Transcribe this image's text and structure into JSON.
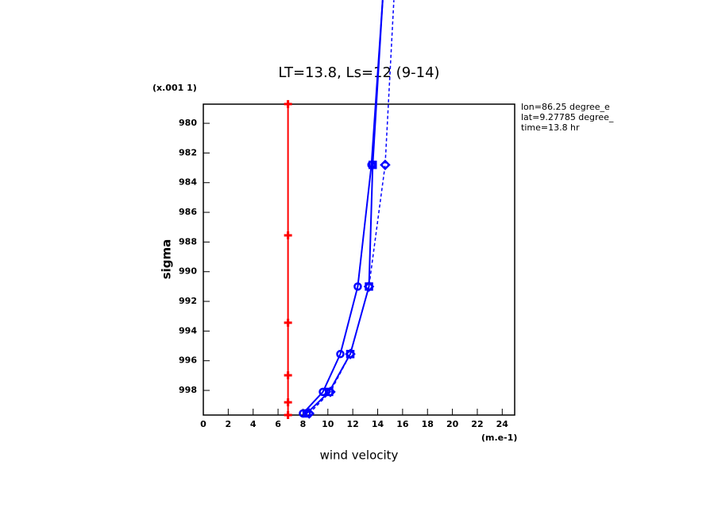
{
  "chart_data": {
    "type": "line",
    "title": "LT=13.8, Ls=12 (9-14)",
    "x_label": "wind velocity",
    "y_label": "sigma",
    "x_units": "(m.e-1)",
    "y_units": "(x.001 1)",
    "annotations": [
      "lon=86.25 degree_e",
      "lat=9.27785 degree_",
      "time=13.8 hr"
    ],
    "xlim": [
      0,
      25
    ],
    "xticks": [
      0,
      2,
      4,
      6,
      8,
      10,
      12,
      14,
      16,
      18,
      20,
      22,
      24
    ],
    "ylim": [
      999.66,
      978.71
    ],
    "yticks": [
      980,
      982,
      984,
      986,
      988,
      990,
      992,
      994,
      996,
      998
    ],
    "series": [
      {
        "color": "#ff0000",
        "marker": "plus",
        "dashed": false,
        "values": [
          6.8,
          6.8,
          6.8,
          6.8,
          6.8,
          6.8
        ],
        "sigma": [
          978.7,
          987.55,
          993.44,
          996.98,
          998.8,
          999.66
        ]
      },
      {
        "color": "#0000ff",
        "marker": "circle",
        "dashed": false,
        "values": [
          8.0,
          9.6,
          11.0,
          12.4,
          13.5,
          14.4
        ],
        "sigma": [
          999.55,
          998.1,
          995.55,
          991.0,
          982.8,
          971.7
        ]
      },
      {
        "color": "#0000ff",
        "marker": "square",
        "dashed": false,
        "values": [
          8.3,
          10.1,
          11.8,
          13.3,
          13.6,
          14.4
        ],
        "sigma": [
          999.55,
          998.1,
          995.55,
          991.0,
          982.8,
          971.7
        ]
      },
      {
        "color": "#0000ff",
        "marker": "diamond",
        "dashed": true,
        "values": [
          8.5,
          10.2,
          11.8,
          13.3,
          14.6,
          15.3
        ],
        "sigma": [
          999.55,
          998.1,
          995.55,
          991.0,
          982.8,
          971.7
        ]
      }
    ]
  }
}
